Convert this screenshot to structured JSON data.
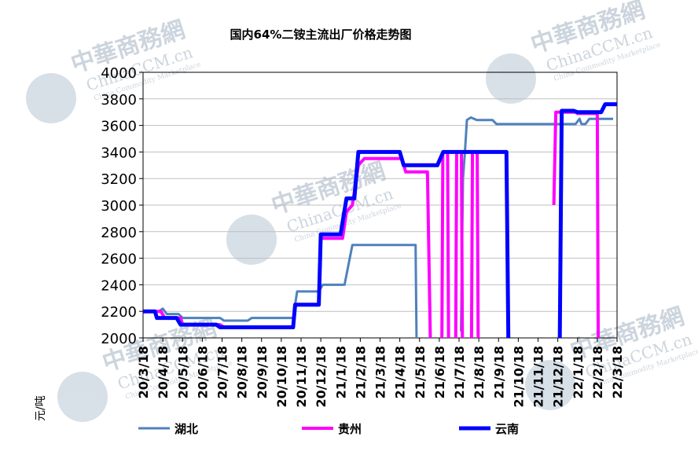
{
  "chart_data": {
    "type": "line",
    "title": "国内64%二铵主流出厂价格走势图",
    "ylabel": "元/吨",
    "xlabel": "",
    "ylim": [
      2000,
      4000
    ],
    "yticks": [
      2000,
      2200,
      2400,
      2600,
      2800,
      3000,
      3200,
      3400,
      3600,
      3800,
      4000
    ],
    "xticks": [
      "20/3/18",
      "20/4/18",
      "20/5/18",
      "20/6/18",
      "20/7/18",
      "20/8/18",
      "20/9/18",
      "20/10/18",
      "20/11/18",
      "20/12/18",
      "21/1/18",
      "21/2/18",
      "21/3/18",
      "21/4/18",
      "21/5/18",
      "21/6/18",
      "21/7/18",
      "21/8/18",
      "21/9/18",
      "21/10/18",
      "21/11/18",
      "21/12/18",
      "22/1/18",
      "22/2/18",
      "22/3/18"
    ],
    "grid": "horizontal",
    "legend_position": "bottom",
    "series": [
      {
        "name": "湖北",
        "color": "#4f81bd",
        "points": [
          [
            0,
            2200
          ],
          [
            0.8,
            2200
          ],
          [
            1.0,
            2220
          ],
          [
            1.2,
            2180
          ],
          [
            1.8,
            2180
          ],
          [
            2.0,
            2150
          ],
          [
            3.9,
            2150
          ],
          [
            4.1,
            2130
          ],
          [
            5.3,
            2130
          ],
          [
            5.5,
            2150
          ],
          [
            7.6,
            2150
          ],
          [
            7.8,
            2350
          ],
          [
            8.9,
            2350
          ],
          [
            9.1,
            2400
          ],
          [
            10.2,
            2400
          ],
          [
            10.4,
            2550
          ],
          [
            10.6,
            2700
          ],
          [
            13.8,
            2700
          ],
          [
            13.85,
            1950
          ]
        ],
        "points_b": [
          [
            16.1,
            2050
          ],
          [
            16.2,
            3200
          ],
          [
            16.3,
            3400
          ],
          [
            16.4,
            3640
          ],
          [
            16.6,
            3660
          ],
          [
            16.9,
            3640
          ],
          [
            17.7,
            3640
          ],
          [
            17.9,
            3610
          ],
          [
            21.9,
            3610
          ],
          [
            22.1,
            3650
          ],
          [
            22.2,
            3610
          ],
          [
            22.4,
            3610
          ],
          [
            22.6,
            3650
          ],
          [
            23.8,
            3650
          ]
        ]
      },
      {
        "name": "贵州",
        "color": "#ff00ff",
        "points": [
          [
            0,
            2200
          ],
          [
            0.7,
            2200
          ],
          [
            0.9,
            2200
          ],
          [
            1.1,
            2150
          ],
          [
            1.9,
            2150
          ],
          [
            2.0,
            2100
          ],
          [
            3.9,
            2100
          ],
          [
            4.1,
            2080
          ],
          [
            7.6,
            2080
          ],
          [
            7.7,
            2250
          ],
          [
            8.9,
            2250
          ],
          [
            9.0,
            2750
          ],
          [
            10.1,
            2750
          ],
          [
            10.3,
            2950
          ],
          [
            10.6,
            3000
          ],
          [
            10.9,
            3300
          ],
          [
            11.2,
            3350
          ],
          [
            13.1,
            3350
          ],
          [
            13.3,
            3250
          ],
          [
            14.4,
            3250
          ],
          [
            14.55,
            1950
          ]
        ],
        "spikes": [
          [
            15.3,
            3400
          ],
          [
            16.0,
            3400
          ],
          [
            16.8,
            3400
          ]
        ],
        "points_b": [
          [
            20.8,
            3000
          ],
          [
            20.9,
            3700
          ],
          [
            21.9,
            3700
          ],
          [
            22.0,
            3690
          ],
          [
            23.0,
            3690
          ],
          [
            23.05,
            1950
          ]
        ]
      },
      {
        "name": "云南",
        "color": "#0000ff",
        "points": [
          [
            0,
            2200
          ],
          [
            0.6,
            2200
          ],
          [
            0.7,
            2150
          ],
          [
            1.7,
            2150
          ],
          [
            1.9,
            2100
          ],
          [
            3.7,
            2100
          ],
          [
            3.9,
            2080
          ],
          [
            7.6,
            2080
          ],
          [
            7.7,
            2250
          ],
          [
            8.9,
            2250
          ],
          [
            9.0,
            2780
          ],
          [
            10.0,
            2780
          ],
          [
            10.3,
            3050
          ],
          [
            10.7,
            3050
          ],
          [
            10.9,
            3400
          ],
          [
            13.0,
            3400
          ],
          [
            13.2,
            3300
          ],
          [
            14.9,
            3300
          ],
          [
            15.2,
            3400
          ],
          [
            18.4,
            3400
          ],
          [
            18.5,
            1950
          ]
        ],
        "points_b": [
          [
            21.1,
            1950
          ],
          [
            21.2,
            3710
          ],
          [
            21.8,
            3710
          ],
          [
            22.0,
            3700
          ],
          [
            23.2,
            3700
          ],
          [
            23.4,
            3760
          ],
          [
            24.0,
            3760
          ]
        ]
      }
    ]
  },
  "watermark": {
    "cn": "中華商務網",
    "en": "ChinaCCM.cn",
    "tagline": "China Commodity Marketplace"
  }
}
